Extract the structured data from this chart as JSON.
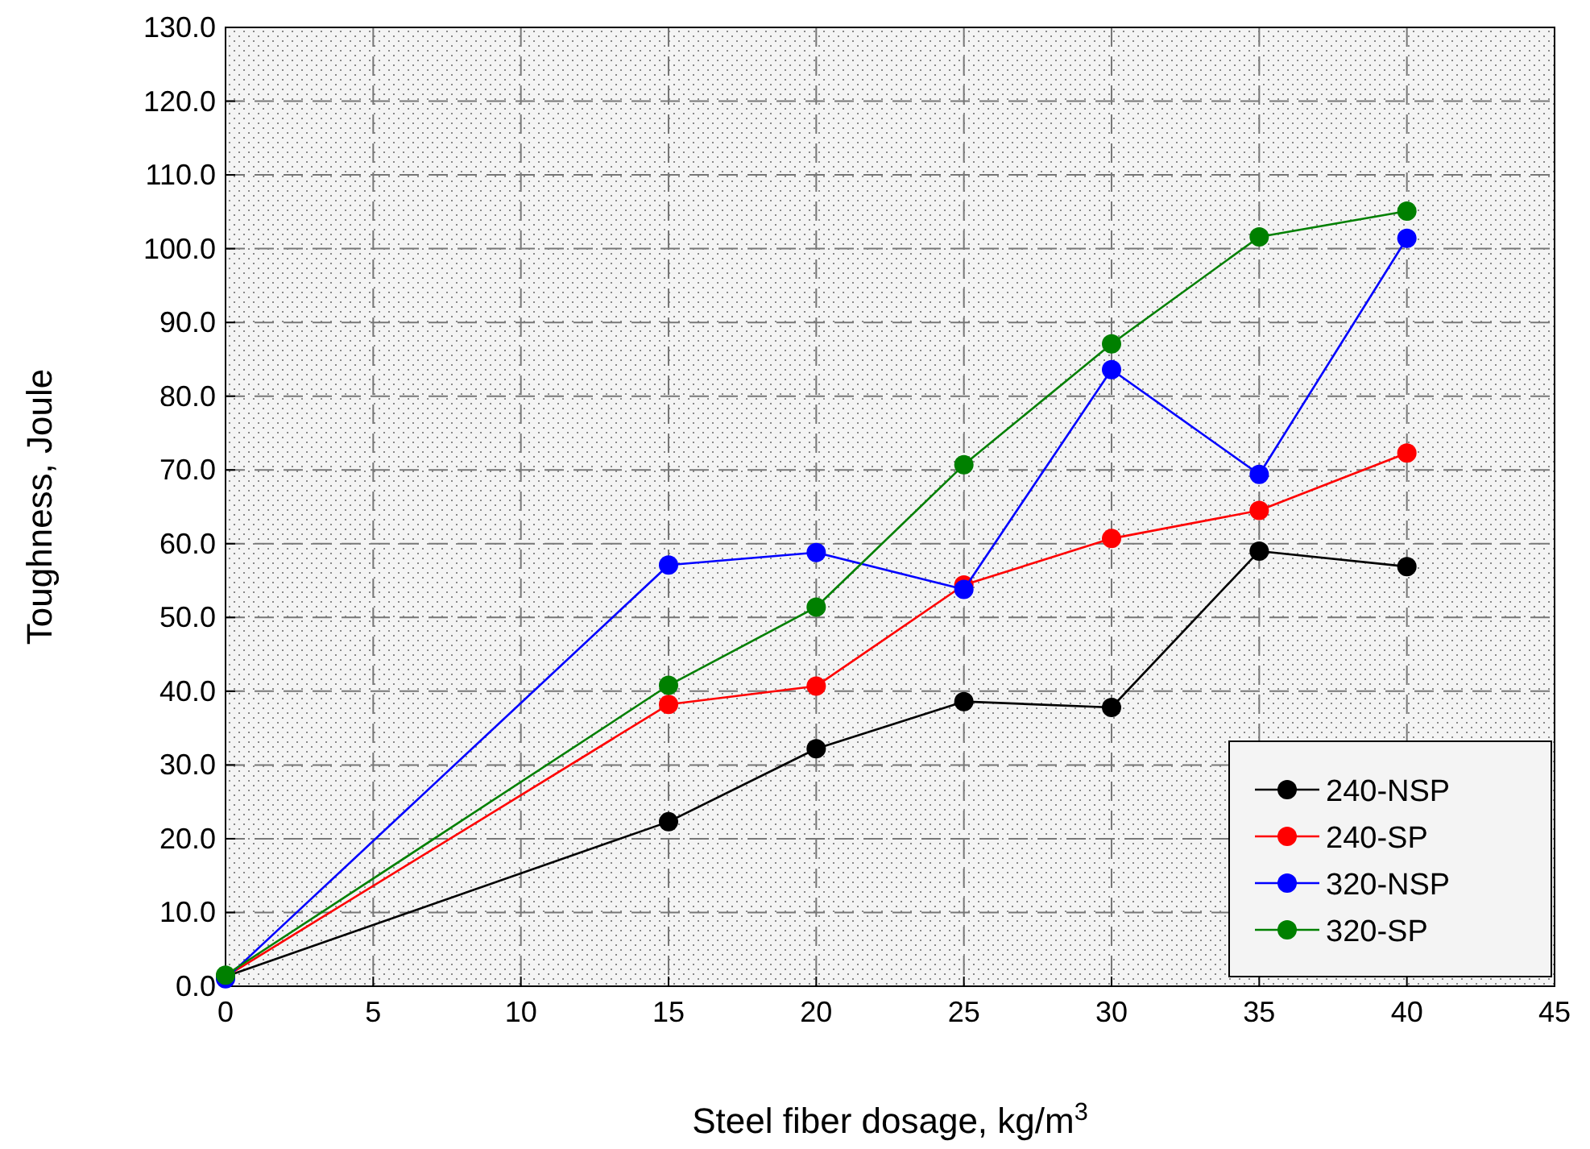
{
  "chart_data": {
    "type": "line",
    "xlabel": "Steel fiber dosage, kg/m$^{3}$",
    "ylabel": "Toughness, Joule",
    "x": [
      0,
      15,
      20,
      25,
      30,
      35,
      40
    ],
    "series": [
      {
        "name": "240-NSP",
        "color": "#000000",
        "values": [
          1.3,
          22.3,
          32.2,
          38.6,
          37.8,
          59.0,
          56.9
        ]
      },
      {
        "name": "240-SP",
        "color": "#ff0000",
        "values": [
          1.3,
          38.2,
          40.7,
          54.4,
          60.7,
          64.5,
          72.3
        ]
      },
      {
        "name": "320-NSP",
        "color": "#0000ff",
        "values": [
          1.0,
          57.1,
          58.8,
          53.8,
          83.6,
          69.4,
          101.4
        ]
      },
      {
        "name": "320-SP",
        "color": "#008000",
        "values": [
          1.5,
          40.8,
          51.4,
          70.7,
          87.1,
          101.6,
          105.1
        ]
      }
    ],
    "xlim": [
      0,
      45
    ],
    "xticks": [
      0,
      5,
      10,
      15,
      20,
      25,
      30,
      35,
      40,
      45
    ],
    "ylim": [
      0,
      130
    ],
    "yticks": [
      {
        "value": 0,
        "label": "0.0"
      },
      {
        "value": 10,
        "label": "10.0"
      },
      {
        "value": 20,
        "label": "20.0"
      },
      {
        "value": 30,
        "label": "30.0"
      },
      {
        "value": 40,
        "label": "40.0"
      },
      {
        "value": 50,
        "label": "50.0"
      },
      {
        "value": 60,
        "label": "60.0"
      },
      {
        "value": 70,
        "label": "70.0"
      },
      {
        "value": 80,
        "label": "80.0"
      },
      {
        "value": 90,
        "label": "90.0"
      },
      {
        "value": 100,
        "label": "100.0"
      },
      {
        "value": 110,
        "label": "110.0"
      },
      {
        "value": 120,
        "label": "120.0"
      },
      {
        "value": 130,
        "label": "130.0"
      }
    ],
    "grid": true,
    "legend": "bottom right",
    "marker": "circle",
    "line_style": "solid"
  }
}
